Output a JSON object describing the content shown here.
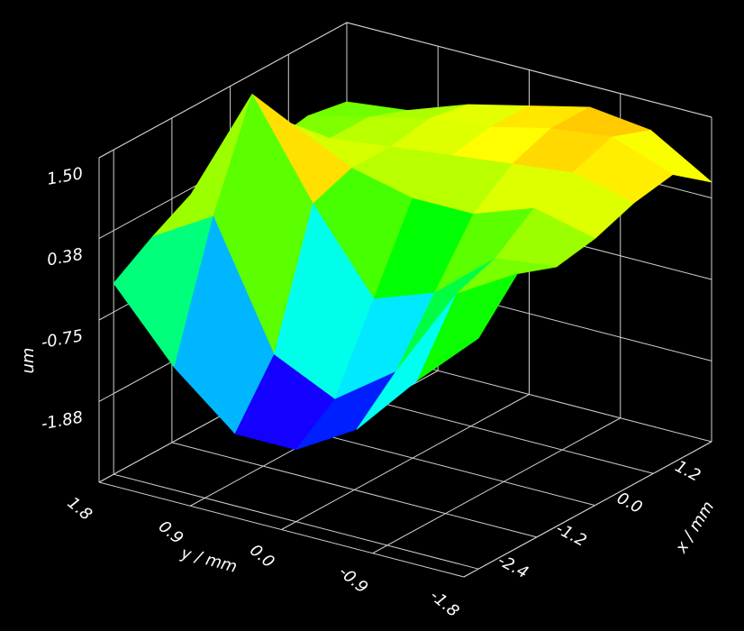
{
  "chart_data": {
    "type": "surface",
    "xlabel": "x / mm",
    "ylabel": "y / mm",
    "zlabel": "um",
    "colormap": "rainbow",
    "x": [
      -2.4,
      -1.6,
      -0.8,
      0,
      0.8,
      1.6,
      2.4
    ],
    "y": [
      1.8,
      1.2,
      0.6,
      0,
      -0.6,
      -1.2,
      -1.8
    ],
    "z": [
      [
        -0.35,
        -1.3,
        -2.0,
        -2.0,
        -1.5,
        -0.6,
        0.2
      ],
      [
        0.0,
        0.5,
        -1.2,
        -1.6,
        -1.0,
        0.3,
        0.8
      ],
      [
        0.3,
        1.9,
        0.6,
        -0.5,
        -0.2,
        0.5,
        0.6
      ],
      [
        0.3,
        1.2,
        0.8,
        0.6,
        0.6,
        0.9,
        0.7
      ],
      [
        0.4,
        0.7,
        0.8,
        0.9,
        1.0,
        1.1,
        0.9
      ],
      [
        0.5,
        0.7,
        0.9,
        1.0,
        1.2,
        1.3,
        1.0
      ],
      [
        0.4,
        0.5,
        0.8,
        1.0,
        1.2,
        1.1,
        0.6
      ]
    ],
    "xlim": [
      -2.7,
      2.4
    ],
    "ylim": [
      -1.8,
      1.8
    ],
    "zlim": [
      -3.0,
      1.5
    ],
    "xticks": [
      -2.4,
      -1.2,
      {
        "value": 0,
        "label": "0.0"
      },
      1.2
    ],
    "yticks": [
      1.8,
      0.9,
      {
        "value": 0,
        "label": "0.0"
      },
      -0.9,
      -1.8
    ],
    "zticks": [
      {
        "value": 1.5,
        "label": "1.50"
      },
      0.38,
      -0.75,
      -1.88
    ],
    "grid": true
  }
}
